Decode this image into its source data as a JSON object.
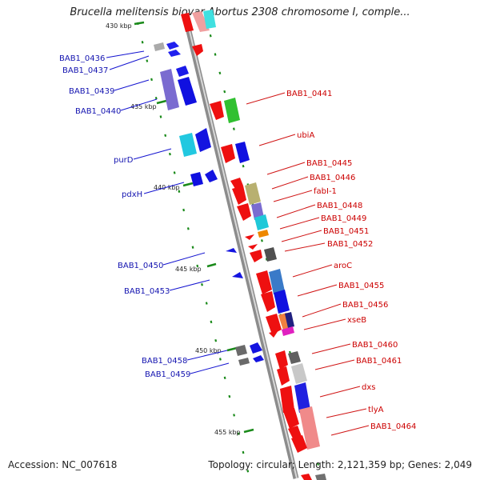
{
  "title": "Brucella melitensis biovar Abortus 2308 chromosome I, comple...",
  "accession": "Accession: NC_007618",
  "summary": "Topology: circular; Length: 2,121,359 bp; Genes: 2,049",
  "kbp_labels": [
    "430 kbp",
    "435 kbp",
    "440 kbp",
    "445 kbp",
    "450 kbp",
    "455 kbp"
  ],
  "left_labels": [
    "BAB1_0436",
    "BAB1_0437",
    "BAB1_0439",
    "BAB1_0440",
    "purD",
    "pdxH",
    "BAB1_0450",
    "BAB1_0453",
    "BAB1_0458",
    "BAB1_0459"
  ],
  "right_labels": [
    "BAB1_0441",
    "ubiA",
    "BAB1_0445",
    "BAB1_0446",
    "fabI-1",
    "BAB1_0448",
    "BAB1_0449",
    "BAB1_0451",
    "BAB1_0452",
    "aroC",
    "BAB1_0455",
    "BAB1_0456",
    "xseB",
    "BAB1_0460",
    "BAB1_0461",
    "dxs",
    "tlyA",
    "BAB1_0464"
  ],
  "colors": {
    "backbone": "#9a9a9a",
    "forward_strand": "#0000ee",
    "reverse_strand": "#ee0000",
    "tick": "#228b22"
  }
}
